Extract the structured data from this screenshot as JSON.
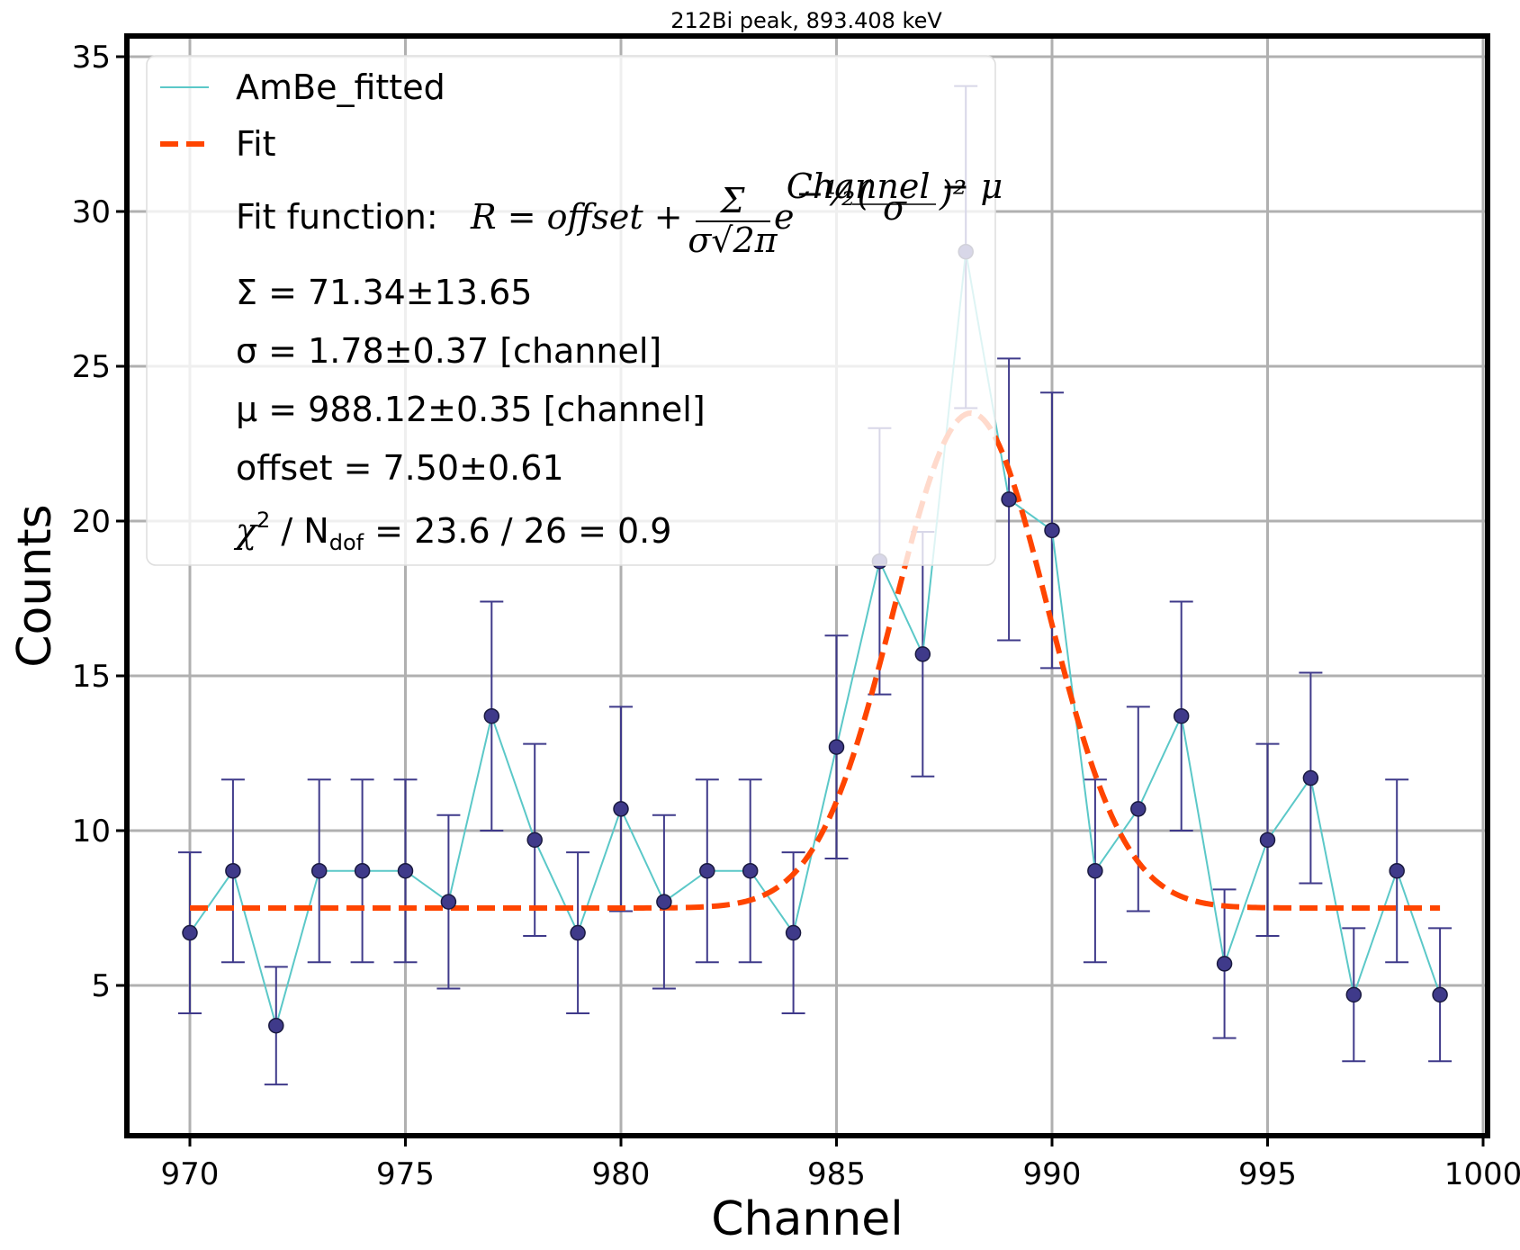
{
  "chart_data": {
    "type": "scatter",
    "title": "212Bi peak, 893.408 keV",
    "xlabel": "Channel",
    "ylabel": "Counts",
    "xlim": [
      968.5,
      1000.5
    ],
    "ylim": [
      0.5,
      35.8
    ],
    "xticks": [
      970,
      975,
      980,
      985,
      990,
      995,
      1000
    ],
    "yticks": [
      5,
      10,
      15,
      20,
      25,
      30,
      35
    ],
    "grid": true,
    "legend_position": "upper-left",
    "colors": {
      "data_line": "#5bc8c8",
      "markers": "#3f3a8a",
      "errorbars": "#3f3a8a",
      "fit": "#ff4500",
      "grid": "#b0b0b0"
    },
    "series": [
      {
        "name": "AmBe_fitted",
        "x": [
          970,
          971,
          972,
          973,
          974,
          975,
          976,
          977,
          978,
          979,
          980,
          981,
          982,
          983,
          984,
          985,
          986,
          987,
          988,
          989,
          990,
          991,
          992,
          993,
          994,
          995,
          996,
          997,
          998,
          999
        ],
        "y": [
          6.7,
          8.7,
          3.7,
          8.7,
          8.7,
          8.7,
          7.7,
          13.7,
          9.7,
          6.7,
          10.7,
          7.7,
          8.7,
          8.7,
          6.7,
          12.7,
          18.7,
          15.7,
          28.7,
          20.7,
          19.7,
          8.7,
          10.7,
          13.7,
          5.7,
          9.7,
          11.7,
          4.7,
          8.7,
          4.7
        ],
        "yerr_low": [
          2.6,
          2.95,
          1.9,
          2.95,
          2.95,
          2.95,
          2.8,
          3.7,
          3.1,
          2.6,
          3.3,
          2.8,
          2.95,
          2.95,
          2.6,
          3.6,
          4.3,
          3.95,
          5.05,
          4.55,
          4.45,
          2.95,
          3.3,
          3.7,
          2.4,
          3.1,
          3.4,
          2.15,
          2.95,
          2.15
        ],
        "yerr_high": [
          2.6,
          2.95,
          1.9,
          2.95,
          2.95,
          2.95,
          2.8,
          3.7,
          3.1,
          2.6,
          3.3,
          2.8,
          2.95,
          2.95,
          2.6,
          3.6,
          4.3,
          3.95,
          5.35,
          4.55,
          4.45,
          2.95,
          3.3,
          3.7,
          2.4,
          3.1,
          3.4,
          2.15,
          2.95,
          2.15
        ]
      },
      {
        "name": "Fit",
        "model": "gaussian_plus_offset",
        "Sigma": 71.34,
        "sigma": 1.78,
        "mu": 988.12,
        "offset": 7.5,
        "x_range": [
          970,
          999
        ]
      }
    ],
    "legend": {
      "entries": [
        "AmBe_fitted",
        "Fit"
      ],
      "fit_function_prefix": "Fit function: ",
      "fit_function_lhs": "R = offset + ",
      "fit_function_frac_num": "Σ",
      "fit_function_frac_den": "σ√2π",
      "fit_function_exp_base": "e",
      "fit_function_exp": "−½(",
      "fit_function_exp_frac_num": "Channel − μ",
      "fit_function_exp_frac_den": "σ",
      "fit_function_exp_tail": ")²",
      "lines": [
        "Σ = 71.34±13.65",
        "σ = 1.78±0.37 [channel]",
        "μ = 988.12±0.35 [channel]",
        "offset = 7.50±0.61"
      ],
      "chi2_prefix": "χ",
      "chi2_sup": "2",
      "chi2_mid": " / N",
      "chi2_sub": "dof",
      "chi2_suffix": " = 23.6 / 26 = 0.9"
    }
  }
}
